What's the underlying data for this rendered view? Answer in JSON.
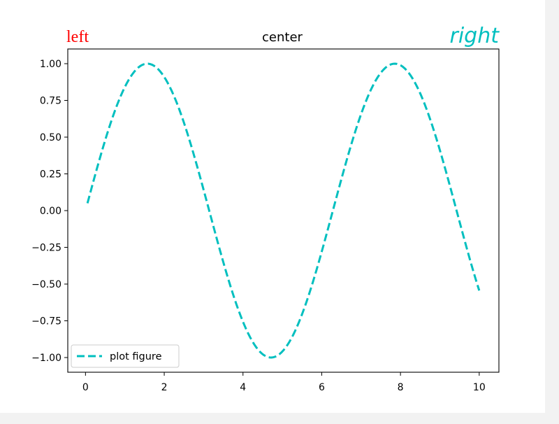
{
  "chart_data": {
    "type": "line",
    "title_left": "left",
    "title_center": "center",
    "title_right": "right",
    "title_left_color": "#ff0000",
    "title_right_color": "#00bfbf",
    "xlim": [
      -0.45,
      10.5
    ],
    "ylim": [
      -1.1,
      1.1
    ],
    "xticks": [
      0,
      2,
      4,
      6,
      8,
      10
    ],
    "xtick_labels": [
      "0",
      "2",
      "4",
      "6",
      "8",
      "10"
    ],
    "yticks": [
      1.0,
      0.75,
      0.5,
      0.25,
      0.0,
      -0.25,
      -0.5,
      -0.75,
      -1.0
    ],
    "ytick_labels": [
      "1.00",
      "0.75",
      "0.50",
      "0.25",
      "0.00",
      "−0.25",
      "−0.50",
      "−0.75",
      "−1.00"
    ],
    "series": [
      {
        "name": "plot figure",
        "color": "#00bfbf",
        "linestyle": "dashed",
        "function": "sin",
        "x_start": 0.05,
        "x_end": 10,
        "samples": 200
      }
    ],
    "legend_location": "lower-left",
    "grid": false
  }
}
